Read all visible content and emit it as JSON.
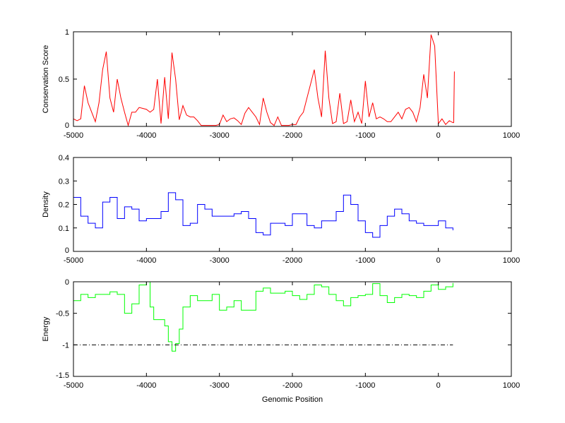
{
  "chart_data": [
    {
      "type": "line",
      "ylabel": "Conservation Score",
      "xlabel": "",
      "xlim": [
        -5000,
        1000
      ],
      "ylim": [
        0,
        1
      ],
      "xticks": [
        "-5000",
        "-4000",
        "-3000",
        "-2000",
        "-1000",
        "0",
        "1000"
      ],
      "yticks": [
        "0",
        "0.5",
        "1"
      ],
      "color": "#ff0000",
      "x": [
        -5000,
        -4950,
        -4900,
        -4850,
        -4800,
        -4750,
        -4700,
        -4650,
        -4600,
        -4550,
        -4500,
        -4450,
        -4400,
        -4350,
        -4300,
        -4250,
        -4200,
        -4150,
        -4100,
        -4050,
        -4000,
        -3950,
        -3900,
        -3850,
        -3800,
        -3750,
        -3700,
        -3650,
        -3600,
        -3550,
        -3500,
        -3450,
        -3400,
        -3350,
        -3300,
        -3250,
        -3200,
        -3150,
        -3100,
        -3050,
        -3000,
        -2950,
        -2900,
        -2850,
        -2800,
        -2750,
        -2700,
        -2650,
        -2600,
        -2550,
        -2500,
        -2450,
        -2400,
        -2350,
        -2300,
        -2250,
        -2200,
        -2150,
        -2100,
        -2050,
        -2000,
        -1950,
        -1900,
        -1850,
        -1800,
        -1750,
        -1700,
        -1650,
        -1600,
        -1550,
        -1500,
        -1450,
        -1400,
        -1350,
        -1300,
        -1250,
        -1200,
        -1150,
        -1100,
        -1050,
        -1000,
        -950,
        -900,
        -850,
        -800,
        -750,
        -700,
        -650,
        -600,
        -550,
        -500,
        -450,
        -400,
        -350,
        -300,
        -250,
        -200,
        -150,
        -100,
        -50,
        0,
        50,
        100,
        150,
        200,
        210,
        220
      ],
      "values": [
        0.08,
        0.06,
        0.08,
        0.43,
        0.25,
        0.15,
        0.05,
        0.25,
        0.6,
        0.79,
        0.3,
        0.15,
        0.5,
        0.3,
        0.15,
        0.01,
        0.15,
        0.15,
        0.2,
        0.19,
        0.18,
        0.15,
        0.18,
        0.5,
        0.03,
        0.52,
        0.08,
        0.78,
        0.5,
        0.07,
        0.22,
        0.12,
        0.1,
        0.1,
        0.06,
        0.01,
        0.01,
        0.01,
        0.01,
        0.01,
        0.02,
        0.12,
        0.05,
        0.08,
        0.09,
        0.06,
        0.02,
        0.14,
        0.2,
        0.15,
        0.1,
        0.02,
        0.3,
        0.15,
        0.04,
        0.01,
        0.1,
        0.01,
        0.01,
        0.01,
        0.02,
        0.02,
        0.1,
        0.15,
        0.3,
        0.45,
        0.6,
        0.3,
        0.1,
        0.8,
        0.3,
        0.03,
        0.05,
        0.35,
        0.03,
        0.05,
        0.28,
        0.05,
        0.15,
        0.03,
        0.48,
        0.1,
        0.25,
        0.08,
        0.1,
        0.08,
        0.05,
        0.05,
        0.1,
        0.15,
        0.08,
        0.18,
        0.2,
        0.15,
        0.05,
        0.2,
        0.55,
        0.3,
        0.97,
        0.85,
        0.03,
        0.08,
        0.02,
        0.06,
        0.04,
        0.04,
        0.58
      ]
    },
    {
      "type": "line",
      "ylabel": "Density",
      "xlabel": "",
      "xlim": [
        -5000,
        1000
      ],
      "ylim": [
        0,
        0.4
      ],
      "xticks": [
        "-5000",
        "-4000",
        "-3000",
        "-2000",
        "-1000",
        "0",
        "1000"
      ],
      "yticks": [
        "0",
        "0.1",
        "0.2",
        "0.3",
        "0.4"
      ],
      "color": "#0000ff",
      "x": [
        -5000,
        -4900,
        -4800,
        -4700,
        -4600,
        -4500,
        -4400,
        -4300,
        -4200,
        -4100,
        -4000,
        -3900,
        -3800,
        -3700,
        -3600,
        -3500,
        -3400,
        -3300,
        -3200,
        -3100,
        -3000,
        -2900,
        -2800,
        -2700,
        -2600,
        -2500,
        -2400,
        -2300,
        -2200,
        -2100,
        -2000,
        -1900,
        -1800,
        -1700,
        -1600,
        -1500,
        -1400,
        -1300,
        -1200,
        -1100,
        -1000,
        -900,
        -800,
        -700,
        -600,
        -500,
        -400,
        -300,
        -200,
        -100,
        0,
        100,
        200
      ],
      "values": [
        0.23,
        0.15,
        0.12,
        0.1,
        0.21,
        0.23,
        0.14,
        0.19,
        0.18,
        0.13,
        0.14,
        0.14,
        0.17,
        0.25,
        0.22,
        0.11,
        0.12,
        0.2,
        0.18,
        0.15,
        0.15,
        0.15,
        0.16,
        0.17,
        0.14,
        0.08,
        0.07,
        0.12,
        0.12,
        0.11,
        0.16,
        0.16,
        0.11,
        0.1,
        0.13,
        0.13,
        0.17,
        0.24,
        0.2,
        0.13,
        0.08,
        0.06,
        0.11,
        0.15,
        0.18,
        0.16,
        0.13,
        0.12,
        0.11,
        0.11,
        0.13,
        0.1,
        0.09
      ]
    },
    {
      "type": "line",
      "ylabel": "Energy",
      "xlabel": "Genomic Position",
      "xlim": [
        -5000,
        1000
      ],
      "ylim": [
        -1.5,
        0
      ],
      "xticks": [
        "-5000",
        "-4000",
        "-3000",
        "-2000",
        "-1000",
        "0",
        "1000"
      ],
      "yticks": [
        "-1.5",
        "-1",
        "-0.5",
        "0"
      ],
      "color": "#00ff00",
      "reference_line": {
        "y": -1,
        "x": [
          -5000,
          200
        ],
        "color": "#000000",
        "style": "dash-dot"
      },
      "x": [
        -5000,
        -4900,
        -4800,
        -4700,
        -4600,
        -4500,
        -4400,
        -4300,
        -4200,
        -4100,
        -4000,
        -3950,
        -3900,
        -3800,
        -3750,
        -3700,
        -3650,
        -3600,
        -3550,
        -3500,
        -3400,
        -3300,
        -3200,
        -3100,
        -3000,
        -2900,
        -2800,
        -2700,
        -2600,
        -2500,
        -2400,
        -2300,
        -2200,
        -2100,
        -2000,
        -1900,
        -1800,
        -1700,
        -1600,
        -1500,
        -1400,
        -1300,
        -1200,
        -1100,
        -1000,
        -900,
        -800,
        -700,
        -600,
        -500,
        -400,
        -300,
        -200,
        -100,
        0,
        100,
        200
      ],
      "values": [
        -0.3,
        -0.2,
        -0.25,
        -0.2,
        -0.2,
        -0.16,
        -0.2,
        -0.5,
        -0.35,
        -0.05,
        0,
        -0.4,
        -0.6,
        -0.6,
        -0.7,
        -0.95,
        -1.1,
        -0.98,
        -0.75,
        -0.4,
        -0.22,
        -0.3,
        -0.3,
        -0.2,
        -0.45,
        -0.4,
        -0.3,
        -0.45,
        -0.45,
        -0.15,
        -0.1,
        -0.18,
        -0.18,
        -0.15,
        -0.22,
        -0.28,
        -0.2,
        -0.05,
        -0.08,
        -0.2,
        -0.3,
        -0.38,
        -0.25,
        -0.22,
        -0.2,
        -0.03,
        -0.22,
        -0.33,
        -0.25,
        -0.2,
        -0.22,
        -0.25,
        -0.15,
        -0.05,
        -0.12,
        -0.08,
        -0.02
      ]
    }
  ]
}
